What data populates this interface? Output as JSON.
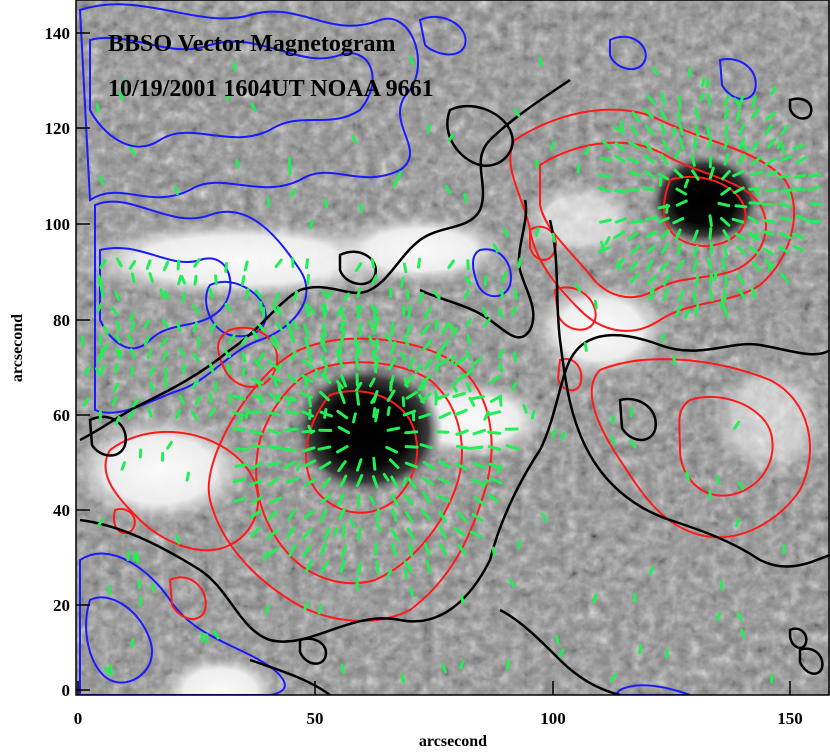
{
  "figure": {
    "title_line1": "BBSO Vector Magnetogram",
    "title_line2": "10/19/2001 1604UT NOAA 9661"
  },
  "axes": {
    "xlabel": "arcsecond",
    "ylabel": "arcsecond",
    "x_ticks": [
      "0",
      "50",
      "100",
      "150"
    ],
    "y_ticks": [
      "0",
      "20",
      "40",
      "60",
      "80",
      "100",
      "120",
      "140"
    ]
  },
  "colors": {
    "positive_contour": "#ff1a1a",
    "negative_contour": "#1a1aff",
    "neutral_line": "#000000",
    "transverse_vectors": "#22ee55",
    "background_gray": "#888888"
  },
  "image_content": {
    "sunspots": [
      {
        "name": "main-leading-spot"
      },
      {
        "name": "secondary-spot"
      }
    ]
  }
}
